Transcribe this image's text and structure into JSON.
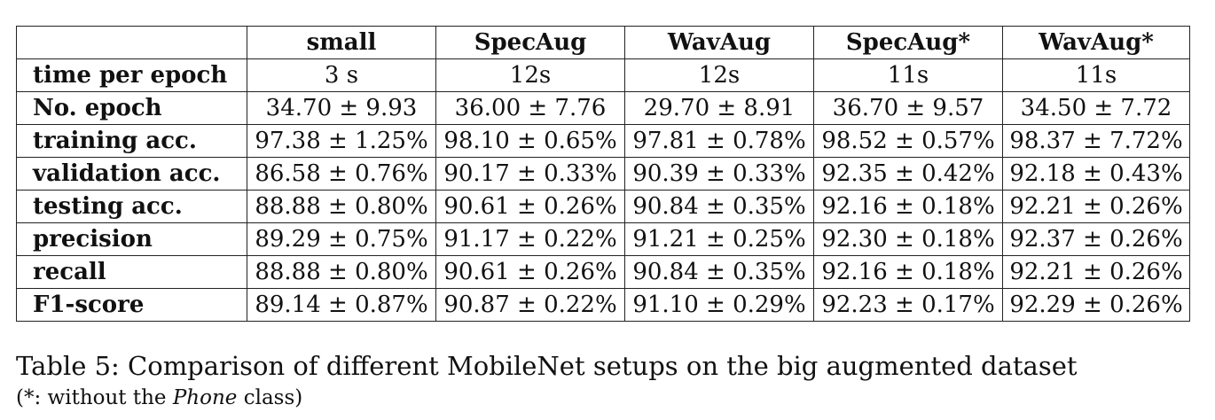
{
  "table": {
    "columns": [
      "small",
      "SpecAug",
      "WavAug",
      "SpecAug*",
      "WavAug*"
    ],
    "rows": [
      {
        "label": "time per epoch",
        "values": [
          "3 s",
          "12s",
          "12s",
          "11s",
          "11s"
        ]
      },
      {
        "label": "No.  epoch",
        "values": [
          "34.70 ± 9.93",
          "36.00 ± 7.76",
          "29.70 ± 8.91",
          "36.70 ± 9.57",
          "34.50 ± 7.72"
        ]
      },
      {
        "label": "training acc.",
        "values": [
          "97.38 ± 1.25%",
          "98.10 ± 0.65%",
          "97.81 ± 0.78%",
          "98.52 ± 0.57%",
          "98.37 ± 7.72%"
        ]
      },
      {
        "label": "validation acc.",
        "values": [
          "86.58 ± 0.76%",
          "90.17 ± 0.33%",
          "90.39 ± 0.33%",
          "92.35 ± 0.42%",
          "92.18 ± 0.43%"
        ]
      },
      {
        "label": "testing acc.",
        "values": [
          "88.88 ± 0.80%",
          "90.61 ± 0.26%",
          "90.84 ± 0.35%",
          "92.16 ± 0.18%",
          "92.21 ± 0.26%"
        ]
      },
      {
        "label": "precision",
        "values": [
          "89.29 ± 0.75%",
          "91.17 ± 0.22%",
          "91.21 ± 0.25%",
          "92.30 ± 0.18%",
          "92.37 ± 0.26%"
        ]
      },
      {
        "label": "recall",
        "values": [
          "88.88 ± 0.80%",
          "90.61 ± 0.26%",
          "90.84 ± 0.35%",
          "92.16 ± 0.18%",
          "92.21 ± 0.26%"
        ]
      },
      {
        "label": "F1-score",
        "values": [
          "89.14 ± 0.87%",
          "90.87 ± 0.22%",
          "91.10 ± 0.29%",
          "92.23 ± 0.17%",
          "92.29 ± 0.26%"
        ]
      }
    ]
  },
  "caption": "Table 5: Comparison of different MobileNet setups on the big augmented dataset",
  "note": {
    "prefix": "(*: without the ",
    "emphasis": "Phone",
    "suffix": " class)"
  }
}
